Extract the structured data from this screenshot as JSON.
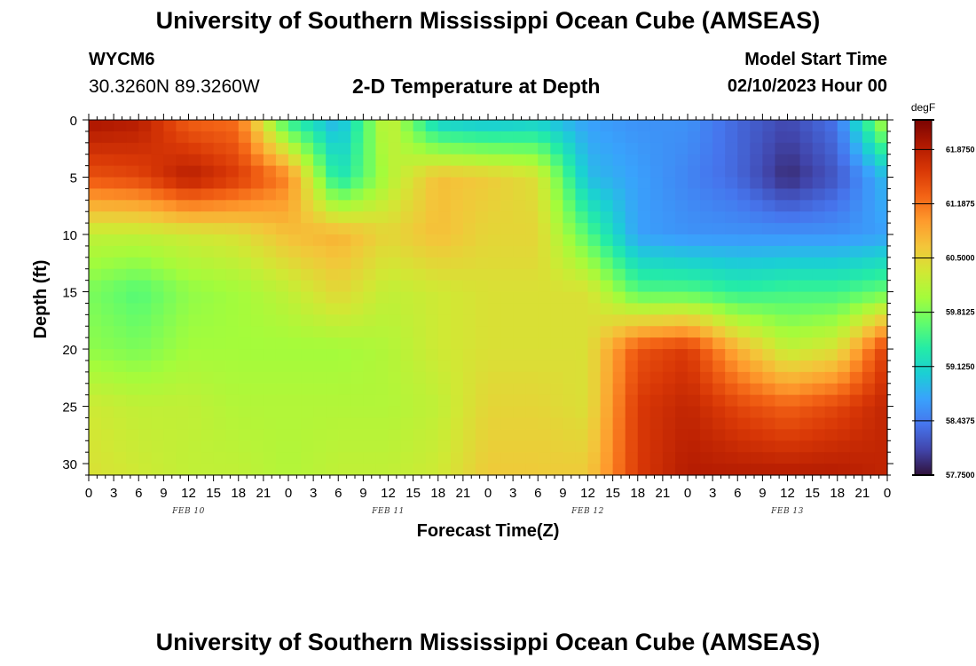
{
  "header": {
    "title": "University of Southern Mississippi Ocean Cube (AMSEAS)",
    "station_id": "WYCM6",
    "coordinates": "30.3260N  89.3260W",
    "subtitle": "2-D Temperature at Depth",
    "model_start_label": "Model Start Time",
    "model_start_value": "02/10/2023 Hour 00"
  },
  "footer": {
    "title": "University of Southern Mississippi Ocean Cube (AMSEAS)"
  },
  "chart_data": {
    "type": "heatmap",
    "title": "2-D Temperature at Depth",
    "xlabel": "Forecast Time(Z)",
    "ylabel": "Depth (ft)",
    "x_range_hours": [
      0,
      96
    ],
    "x_tick_step_hours": 3,
    "x_tick_labels": [
      "0",
      "3",
      "6",
      "9",
      "12",
      "15",
      "18",
      "21",
      "0",
      "3",
      "6",
      "9",
      "12",
      "15",
      "18",
      "21",
      "0",
      "3",
      "6",
      "9",
      "12",
      "15",
      "18",
      "21",
      "0",
      "3",
      "6",
      "9",
      "12",
      "15",
      "18",
      "21",
      "0"
    ],
    "date_labels": [
      {
        "text": "FEB 10",
        "hour": 12
      },
      {
        "text": "FEB 11",
        "hour": 36
      },
      {
        "text": "FEB 12",
        "hour": 60
      },
      {
        "text": "FEB 13",
        "hour": 84
      }
    ],
    "ylim": [
      0,
      31
    ],
    "y_ticks": [
      0,
      5,
      10,
      15,
      20,
      25,
      30
    ],
    "y_tick_labels": [
      "0",
      "5",
      "10",
      "15",
      "20",
      "25",
      "30"
    ],
    "colorbar": {
      "unit": "degF",
      "range": [
        57.75,
        62.25
      ],
      "tick_values": [
        61.875,
        61.1875,
        60.5,
        59.8125,
        59.125,
        58.4375,
        57.75
      ],
      "tick_labels": [
        "61.8750",
        "61.1875",
        "60.5000",
        "59.8125",
        "59.1250",
        "58.4375",
        "57.7500"
      ],
      "colors": [
        "#30123b",
        "#4145ab",
        "#4675ed",
        "#39a2fc",
        "#1bcfd4",
        "#24eca6",
        "#61fc6c",
        "#a4fc3b",
        "#d1e834",
        "#f3c63a",
        "#fe9b2d",
        "#f36315",
        "#d93806",
        "#b11901",
        "#7a0402"
      ]
    },
    "temperature_grid": {
      "hours": [
        0,
        6,
        12,
        18,
        24,
        30,
        36,
        42,
        48,
        54,
        60,
        66,
        72,
        78,
        84,
        90,
        96
      ],
      "depths_ft": [
        0,
        5,
        10,
        15,
        20,
        25,
        31
      ],
      "values_degF": [
        [
          62.0,
          61.9,
          61.3,
          61.2,
          59.4,
          58.8,
          60.3,
          59.0,
          58.9,
          59.0,
          58.7,
          58.6,
          58.6,
          58.3,
          58.1,
          58.4,
          60.2
        ],
        [
          61.4,
          61.5,
          61.9,
          61.6,
          61.1,
          59.2,
          60.1,
          60.7,
          60.6,
          60.4,
          58.9,
          58.7,
          58.5,
          58.3,
          57.9,
          58.2,
          58.9
        ],
        [
          60.2,
          60.2,
          60.3,
          60.4,
          60.7,
          60.8,
          60.5,
          60.7,
          60.5,
          60.5,
          59.6,
          58.7,
          58.6,
          58.6,
          58.6,
          58.6,
          58.7
        ],
        [
          59.8,
          59.6,
          59.9,
          60.0,
          60.2,
          60.5,
          60.2,
          60.3,
          60.4,
          60.4,
          60.4,
          59.6,
          59.6,
          59.4,
          59.5,
          59.5,
          59.7
        ],
        [
          59.9,
          59.8,
          60.0,
          60.0,
          60.0,
          60.0,
          60.1,
          60.3,
          60.4,
          60.4,
          60.4,
          61.4,
          61.6,
          60.8,
          60.2,
          60.4,
          61.6
        ],
        [
          60.3,
          60.2,
          60.2,
          60.1,
          60.1,
          60.1,
          60.1,
          60.2,
          60.5,
          60.5,
          60.4,
          61.6,
          61.8,
          61.5,
          61.3,
          61.5,
          61.8
        ],
        [
          60.4,
          60.3,
          60.2,
          60.2,
          60.1,
          60.2,
          60.2,
          60.3,
          60.6,
          60.6,
          60.6,
          61.6,
          61.9,
          61.9,
          61.9,
          61.9,
          61.8
        ]
      ]
    }
  }
}
